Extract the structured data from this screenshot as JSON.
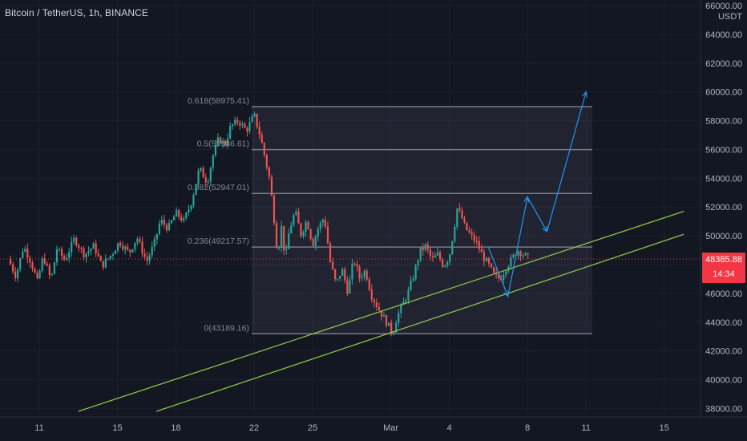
{
  "header": {
    "symbol": "Bitcoin / TetherUS",
    "interval": "1h",
    "exchange": "BINANCE"
  },
  "price_axis": {
    "currency": "USDT",
    "ticks": [
      "38000.00",
      "40000.00",
      "42000.00",
      "44000.00",
      "46000.00",
      "48000.00",
      "50000.00",
      "52000.00",
      "54000.00",
      "56000.00",
      "58000.00",
      "60000.00",
      "62000.00",
      "64000.00",
      "66000.00"
    ]
  },
  "time_axis": {
    "ticks": [
      "11",
      "15",
      "18",
      "22",
      "25",
      "Mar",
      "4",
      "8",
      "11",
      "15"
    ]
  },
  "current_price": {
    "value": "48385.88",
    "countdown": "14:34"
  },
  "colors": {
    "background": "#131722",
    "up_candle": "#26a69a",
    "down_candle": "#ef5350",
    "fib_line": "#787b86",
    "trendline": "#8bc34a",
    "projection": "#2196f3",
    "price_line": "#f23645"
  },
  "chart_data": {
    "type": "candlestick",
    "ylim": [
      37800,
      66000
    ],
    "x_ticks": [
      "11",
      "15",
      "18",
      "22",
      "25",
      "Mar",
      "4",
      "8",
      "11",
      "15"
    ],
    "fibonacci": [
      {
        "label": "0.618(58975.41)",
        "price": 58975.41
      },
      {
        "label": "0.5(55986.61)",
        "price": 55986.61
      },
      {
        "label": "0.382(52947.01)",
        "price": 52947.01
      },
      {
        "label": "0.236(49217.57)",
        "price": 49217.57
      },
      {
        "label": "0(43189.16)",
        "price": 43189.16
      }
    ],
    "trendlines": [
      {
        "from": {
          "x": "13 Feb",
          "price": 37800
        },
        "to": {
          "x": "16 Mar",
          "price": 51700
        }
      },
      {
        "from": {
          "x": "17 Feb",
          "price": 37800
        },
        "to": {
          "x": "16 Mar",
          "price": 50100
        }
      }
    ],
    "projection_path": [
      {
        "x": "6 Mar",
        "price": 49200
      },
      {
        "x": "7 Mar",
        "price": 45800
      },
      {
        "x": "8 Mar",
        "price": 52700
      },
      {
        "x": "9 Mar",
        "price": 50300
      },
      {
        "x": "11 Mar",
        "price": 60000
      }
    ],
    "current_price": 48385.88
  }
}
